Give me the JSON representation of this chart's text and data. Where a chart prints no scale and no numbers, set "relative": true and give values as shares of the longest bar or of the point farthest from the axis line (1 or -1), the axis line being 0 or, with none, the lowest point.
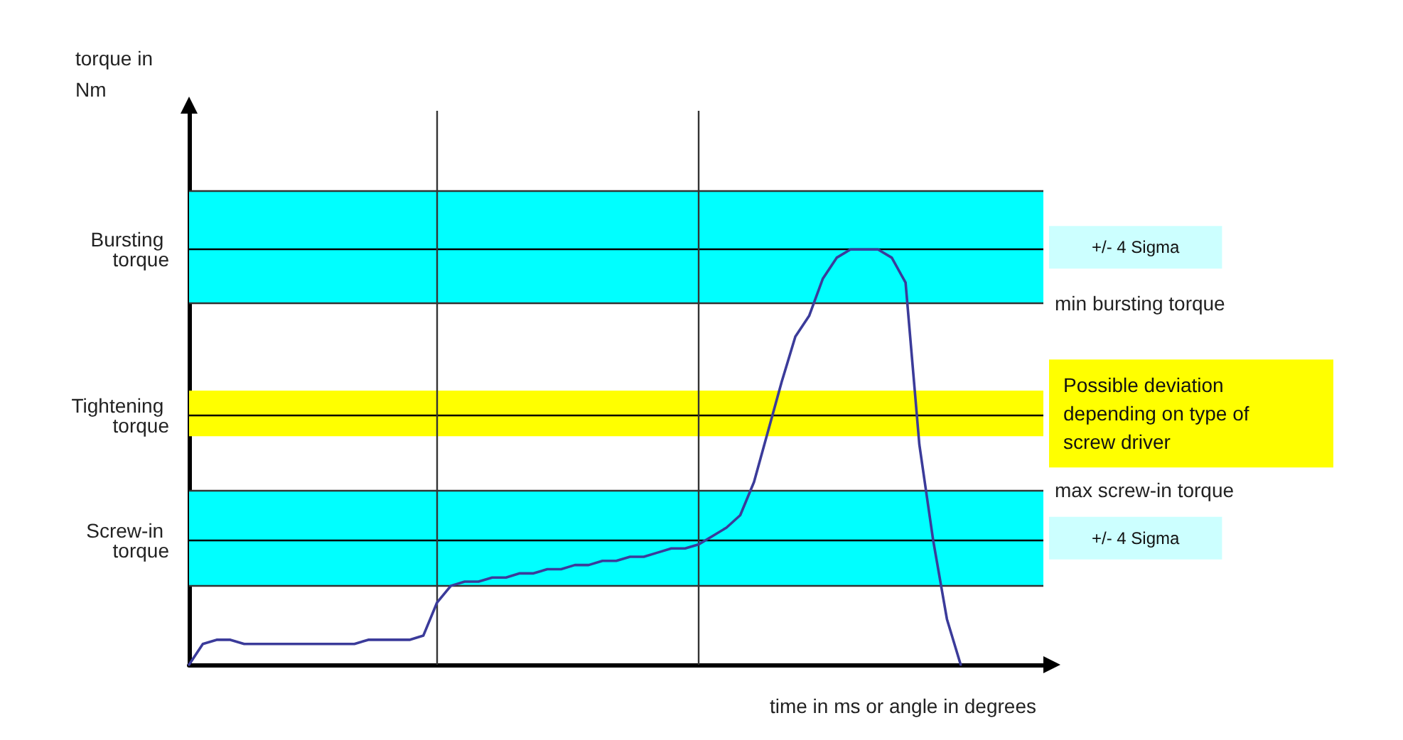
{
  "chart_data": {
    "type": "line",
    "relative": true,
    "annotations": [
      "torque in Nm"
    ],
    "xlabel": "time in ms or angle in degrees",
    "grid": false,
    "marker": "none",
    "line_style": "solid",
    "categories": [
      null,
      null,
      null,
      null,
      null,
      null,
      null,
      null,
      null,
      null,
      null,
      null,
      null,
      null,
      null,
      null,
      null,
      null,
      null,
      null,
      null,
      null,
      null,
      null,
      null,
      null,
      null,
      null,
      null,
      null,
      null,
      null,
      null,
      null,
      null,
      null,
      null,
      null,
      null,
      null,
      null,
      null,
      null,
      null,
      null,
      null,
      null,
      null,
      null,
      null,
      null,
      null,
      null,
      null,
      null,
      null,
      null,
      null,
      null,
      null,
      null,
      null,
      null
    ],
    "series": [
      {
        "color": "#3b3b9a",
        "values": [
          0,
          0.05,
          0.06,
          0.06,
          0.05,
          0.05,
          0.05,
          0.05,
          0.05,
          0.05,
          0.05,
          0.05,
          0.05,
          0.06,
          0.06,
          0.06,
          0.06,
          0.07,
          0.15,
          0.19,
          0.2,
          0.2,
          0.21,
          0.21,
          0.22,
          0.22,
          0.23,
          0.23,
          0.24,
          0.24,
          0.25,
          0.25,
          0.26,
          0.26,
          0.27,
          0.28,
          0.28,
          0.29,
          0.31,
          0.33,
          0.36,
          0.44,
          0.56,
          0.68,
          0.79,
          0.84,
          0.93,
          0.98,
          1,
          1,
          1,
          0.98,
          0.92,
          0.53,
          0.3,
          0.11,
          0,
          null,
          null,
          null,
          null,
          null,
          null
        ]
      }
    ],
    "bands": [
      {
        "axis": "y",
        "from": 0.87,
        "to": 1.14,
        "label": "+/- 4 Sigma",
        "color": "#00ffff"
      },
      {
        "axis": "y",
        "from": 0.55,
        "to": 0.66,
        "label": "Possible deviation depending on type of screw driver",
        "color": "#ffff00"
      },
      {
        "axis": "y",
        "from": 0.19,
        "to": 0.42,
        "label": "+/- 4 Sigma",
        "color": "#00ffff"
      }
    ],
    "ref_lines": [
      {
        "axis": "y",
        "value": 1.14,
        "color": "#333333"
      },
      {
        "axis": "y",
        "value": 1.0,
        "label": "Bursting torque",
        "color": "#000000"
      },
      {
        "axis": "y",
        "value": 0.87,
        "label": "min bursting torque",
        "color": "#333333"
      },
      {
        "axis": "y",
        "value": 0.6,
        "label": "Tightening torque",
        "color": "#000000"
      },
      {
        "axis": "y",
        "value": 0.42,
        "label": "max screw-in torque",
        "color": "#333333"
      },
      {
        "axis": "y",
        "value": 0.3,
        "label": "Screw-in torque",
        "color": "#000000"
      },
      {
        "axis": "y",
        "value": 0.19,
        "color": "#333333"
      }
    ]
  }
}
